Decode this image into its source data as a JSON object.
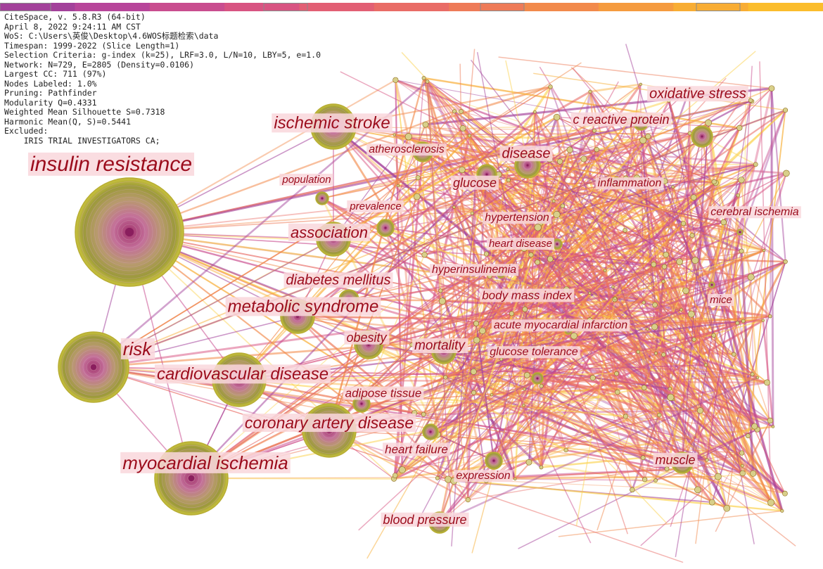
{
  "info_panel": {
    "lines": [
      "CiteSpace, v. 5.8.R3 (64-bit)",
      "April 8, 2022 9:24:11 AM CST",
      "WoS: C:\\Users\\英俊\\Desktop\\4.6WOS标题检索\\data",
      "Timespan: 1999-2022 (Slice Length=1)",
      "Selection Criteria: g-index (k=25), LRF=3.0, L/N=10, LBY=5, e=1.0",
      "Network: N=729, E=2805 (Density=0.0106)",
      "Largest CC: 711 (97%)",
      "Nodes Labeled: 1.0%",
      "Pruning: Pathfinder",
      "Modularity Q=0.4331",
      "Weighted Mean Silhouette S=0.7318",
      "Harmonic Mean(Q, S)=0.5441",
      "Excluded:",
      "    IRIS TRIAL INVESTIGATORS CA;"
    ]
  },
  "timeline_colors": [
    "#a3419a",
    "#b8459a",
    "#c94d8f",
    "#d85482",
    "#e25f74",
    "#e96c66",
    "#ee7b58",
    "#f28a4b",
    "#f59b3f",
    "#f8ad34",
    "#fbbd2c"
  ],
  "keywords": [
    {
      "label": "insulin resistance",
      "size": 30
    },
    {
      "label": "ischemic stroke",
      "size": 24
    },
    {
      "label": "oxidative stress",
      "size": 20
    },
    {
      "label": "c reactive protein",
      "size": 18
    },
    {
      "label": "atherosclerosis",
      "size": 16
    },
    {
      "label": "disease",
      "size": 20
    },
    {
      "label": "population",
      "size": 15
    },
    {
      "label": "glucose",
      "size": 18
    },
    {
      "label": "inflammation",
      "size": 16
    },
    {
      "label": "prevalence",
      "size": 15
    },
    {
      "label": "hypertension",
      "size": 16
    },
    {
      "label": "cerebral ischemia",
      "size": 16
    },
    {
      "label": "association",
      "size": 22
    },
    {
      "label": "heart disease",
      "size": 15
    },
    {
      "label": "hyperinsulinemia",
      "size": 16
    },
    {
      "label": "diabetes mellitus",
      "size": 20
    },
    {
      "label": "body mass index",
      "size": 17
    },
    {
      "label": "metabolic syndrome",
      "size": 24
    },
    {
      "label": "mice",
      "size": 15
    },
    {
      "label": "acute myocardial infarction",
      "size": 16
    },
    {
      "label": "obesity",
      "size": 18
    },
    {
      "label": "mortality",
      "size": 19
    },
    {
      "label": "risk",
      "size": 26
    },
    {
      "label": "glucose tolerance",
      "size": 16
    },
    {
      "label": "cardiovascular disease",
      "size": 24
    },
    {
      "label": "adipose tissue",
      "size": 17
    },
    {
      "label": "coronary artery disease",
      "size": 23
    },
    {
      "label": "heart failure",
      "size": 17
    },
    {
      "label": "myocardial ischemia",
      "size": 26
    },
    {
      "label": "muscle",
      "size": 18
    },
    {
      "label": "expression",
      "size": 16
    },
    {
      "label": "blood pressure",
      "size": 18
    }
  ]
}
